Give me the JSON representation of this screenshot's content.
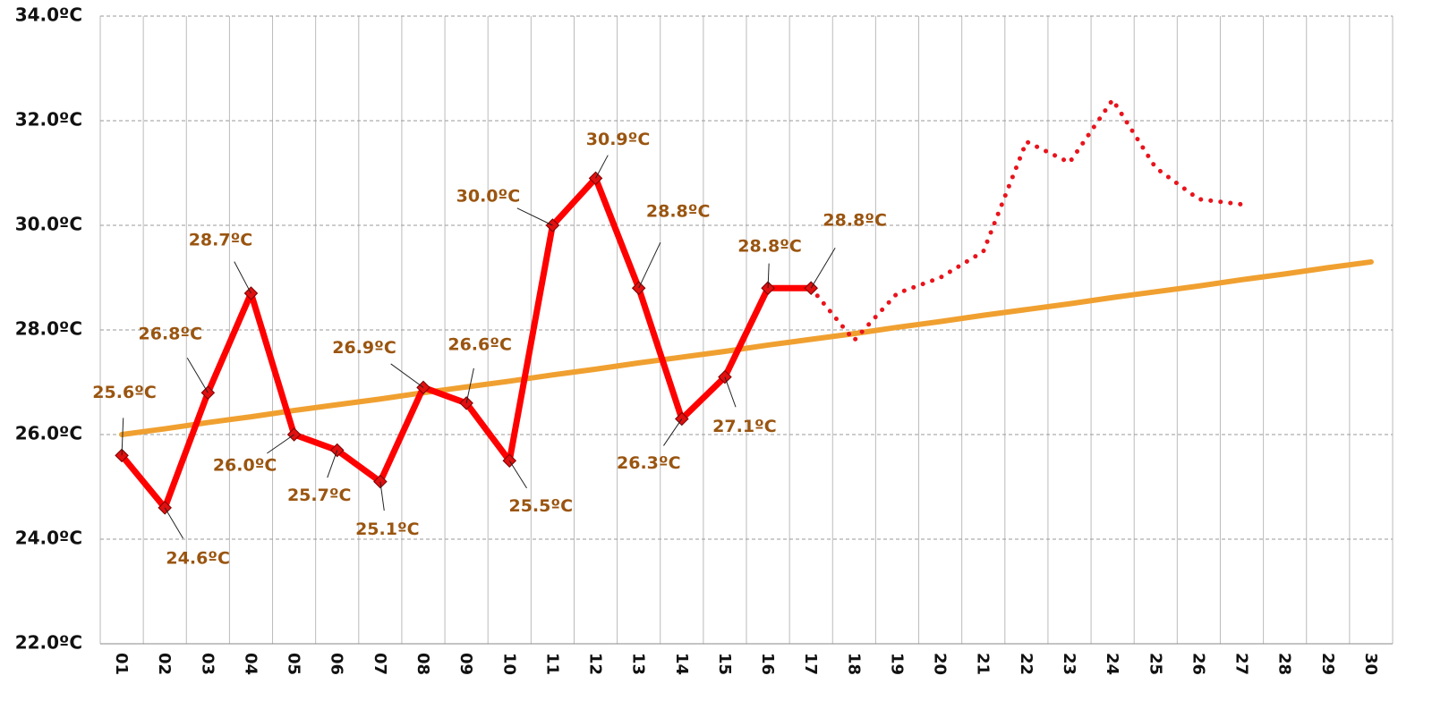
{
  "chart_data": {
    "type": "line",
    "categories": [
      "01",
      "02",
      "03",
      "04",
      "05",
      "06",
      "07",
      "08",
      "09",
      "10",
      "11",
      "12",
      "13",
      "14",
      "15",
      "16",
      "17",
      "18",
      "19",
      "20",
      "21",
      "22",
      "23",
      "24",
      "25",
      "26",
      "27",
      "28",
      "29",
      "30"
    ],
    "series": [
      {
        "color": "#ff0000",
        "style": "solid",
        "values": [
          25.6,
          24.6,
          26.8,
          28.7,
          26.0,
          25.7,
          25.1,
          26.9,
          26.6,
          25.5,
          30.0,
          30.9,
          28.8,
          26.3,
          27.1,
          28.8,
          28.8,
          null,
          null,
          null,
          null,
          null,
          null,
          null,
          null,
          null,
          null,
          null,
          null,
          null
        ],
        "value_labels": [
          "25.6ºC",
          "24.6ºC",
          "26.8ºC",
          "28.7ºC",
          "26.0ºC",
          "25.7ºC",
          "25.1ºC",
          "26.9ºC",
          "26.6ºC",
          "25.5ºC",
          "30.0ºC",
          "30.9ºC",
          "28.8ºC",
          "26.3ºC",
          "27.1ºC",
          "28.8ºC",
          "28.8ºC",
          null,
          null,
          null,
          null,
          null,
          null,
          null,
          null,
          null,
          null,
          null,
          null,
          null
        ]
      },
      {
        "color": "#e8141c",
        "style": "dotted",
        "values": [
          null,
          null,
          null,
          null,
          null,
          null,
          null,
          null,
          null,
          null,
          null,
          null,
          null,
          null,
          null,
          null,
          28.8,
          27.8,
          28.7,
          29.0,
          29.5,
          31.6,
          31.2,
          32.4,
          31.1,
          30.5,
          30.4,
          null,
          null,
          null
        ]
      },
      {
        "color": "#f0a030",
        "style": "solid",
        "values": [
          26.0,
          26.11,
          26.23,
          26.34,
          26.46,
          26.57,
          26.68,
          26.8,
          26.91,
          27.02,
          27.14,
          27.25,
          27.37,
          27.48,
          27.59,
          27.71,
          27.82,
          27.93,
          28.05,
          28.16,
          28.28,
          28.39,
          28.5,
          28.62,
          28.73,
          28.84,
          28.96,
          29.07,
          29.19,
          29.3
        ]
      }
    ],
    "ylim": [
      22,
      34
    ],
    "yticks": [
      {
        "value": 22,
        "label": "22.0ºC"
      },
      {
        "value": 24,
        "label": "24.0ºC"
      },
      {
        "value": 26,
        "label": "26.0ºC"
      },
      {
        "value": 28,
        "label": "28.0ºC"
      },
      {
        "value": 30,
        "label": "30.0ºC"
      },
      {
        "value": 32,
        "label": "32.0ºC"
      },
      {
        "value": 34,
        "label": "34.0ºC"
      }
    ],
    "grid": true
  }
}
